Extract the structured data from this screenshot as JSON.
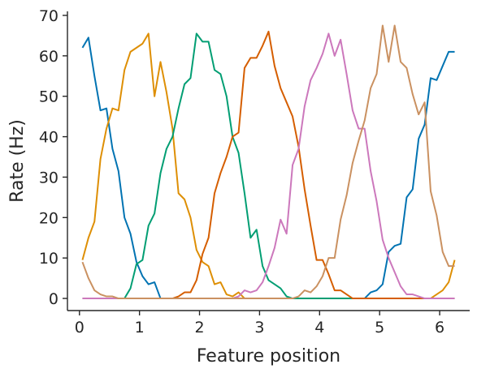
{
  "chart_data": {
    "type": "line",
    "xlabel": "Feature position",
    "ylabel": "Rate (Hz)",
    "xlim": [
      -0.2,
      6.5
    ],
    "ylim": [
      -3,
      71
    ],
    "xticks": [
      0,
      1,
      2,
      3,
      4,
      5,
      6
    ],
    "yticks": [
      0,
      10,
      20,
      30,
      40,
      50,
      60,
      70
    ],
    "grid": false,
    "legend": "none",
    "x": [
      0.05,
      0.15,
      0.25,
      0.35,
      0.45,
      0.55,
      0.65,
      0.75,
      0.85,
      0.95,
      1.05,
      1.15,
      1.25,
      1.35,
      1.45,
      1.55,
      1.65,
      1.75,
      1.85,
      1.95,
      2.05,
      2.15,
      2.25,
      2.35,
      2.45,
      2.55,
      2.65,
      2.75,
      2.85,
      2.95,
      3.05,
      3.15,
      3.25,
      3.35,
      3.45,
      3.55,
      3.65,
      3.75,
      3.85,
      3.95,
      4.05,
      4.15,
      4.25,
      4.35,
      4.45,
      4.55,
      4.65,
      4.75,
      4.85,
      4.95,
      5.05,
      5.15,
      5.25,
      5.35,
      5.45,
      5.55,
      5.65,
      5.75,
      5.85,
      5.95,
      6.05,
      6.15,
      6.25
    ],
    "series": [
      {
        "color": "#0173b2",
        "values": [
          62,
          64.5,
          55,
          46.5,
          47,
          37,
          31.5,
          20,
          16,
          9,
          5.5,
          3.5,
          4,
          0,
          0,
          0,
          0,
          0,
          0,
          0,
          0,
          0,
          0,
          0,
          0,
          0,
          0,
          0,
          0,
          0,
          0,
          0,
          0,
          0,
          0,
          0,
          0,
          0,
          0,
          0,
          0,
          0,
          0,
          0,
          0,
          0,
          0,
          0,
          1.5,
          2,
          3.5,
          11.5,
          13,
          13.5,
          25,
          27,
          39.5,
          43,
          54.5,
          54,
          57.5,
          61,
          61
        ]
      },
      {
        "color": "#de8f05",
        "values": [
          9.5,
          15,
          19,
          34.5,
          42,
          47,
          46.5,
          56.5,
          61,
          62,
          63,
          65.5,
          50,
          58.5,
          51,
          42,
          26,
          24.5,
          20,
          12,
          9,
          8,
          3.5,
          4,
          1,
          0.5,
          1.5,
          0,
          0,
          0,
          0,
          0,
          0,
          0,
          0,
          0,
          0,
          0,
          0,
          0,
          0,
          0,
          0,
          0,
          0,
          0,
          0,
          0,
          0,
          0,
          0,
          0,
          0,
          0,
          0,
          0,
          0,
          0,
          0,
          1,
          2,
          4,
          9.5
        ]
      },
      {
        "color": "#029e73",
        "values": [
          0,
          0,
          0,
          0,
          0,
          0,
          0,
          0,
          2.5,
          8.5,
          9.5,
          18,
          21,
          31,
          37,
          40,
          47,
          53,
          54.5,
          65.5,
          63.5,
          63.5,
          56.5,
          55.5,
          50,
          40,
          36,
          26,
          15,
          17,
          8,
          4.5,
          3.5,
          2.5,
          0.5,
          0,
          0,
          0,
          0,
          0,
          0,
          0,
          0,
          0,
          0,
          0,
          0,
          0,
          0,
          0,
          0,
          0,
          0,
          0,
          0,
          0,
          0,
          0,
          0,
          0,
          0,
          0,
          0
        ]
      },
      {
        "color": "#d55e00",
        "values": [
          0,
          0,
          0,
          0,
          0,
          0,
          0,
          0,
          0,
          0,
          0,
          0,
          0,
          0,
          0,
          0,
          0.5,
          1.5,
          1.5,
          4.5,
          11,
          15,
          26,
          31,
          35,
          40,
          41,
          57,
          59.5,
          59.5,
          62.5,
          66,
          57.5,
          52,
          48.5,
          45,
          37.5,
          27,
          18,
          9.5,
          9.5,
          6,
          2,
          2,
          1,
          0,
          0,
          0,
          0,
          0,
          0,
          0,
          0,
          0,
          0,
          0,
          0,
          0,
          0,
          0,
          0,
          0,
          0
        ]
      },
      {
        "color": "#cc78bc",
        "values": [
          0,
          0,
          0,
          0,
          0,
          0,
          0,
          0,
          0,
          0,
          0,
          0,
          0,
          0,
          0,
          0,
          0,
          0,
          0,
          0,
          0,
          0,
          0,
          0,
          0,
          0,
          0.5,
          2,
          1.5,
          2,
          4,
          8,
          12.5,
          19.5,
          16,
          33,
          37,
          47.5,
          54,
          57,
          60.5,
          65.5,
          60,
          64,
          55.5,
          46.5,
          42,
          42,
          31.5,
          24,
          14.5,
          10,
          6.5,
          3,
          1,
          1,
          0.5,
          0,
          0,
          0,
          0,
          0,
          0
        ]
      },
      {
        "color": "#ca9161",
        "values": [
          9,
          5,
          2,
          1,
          0.5,
          0.5,
          0,
          0,
          0,
          0,
          0,
          0,
          0,
          0,
          0,
          0,
          0,
          0,
          0,
          0,
          0,
          0,
          0,
          0,
          0,
          0,
          0,
          0,
          0,
          0,
          0,
          0,
          0,
          0,
          0,
          0,
          0.5,
          2,
          1.5,
          3,
          5.5,
          10,
          10,
          19.5,
          25.5,
          33.5,
          39,
          44,
          52,
          55.5,
          67.5,
          58.5,
          67.5,
          58.5,
          57,
          50.5,
          45.5,
          48.5,
          26.5,
          20.5,
          11.5,
          8,
          8
        ]
      }
    ]
  }
}
